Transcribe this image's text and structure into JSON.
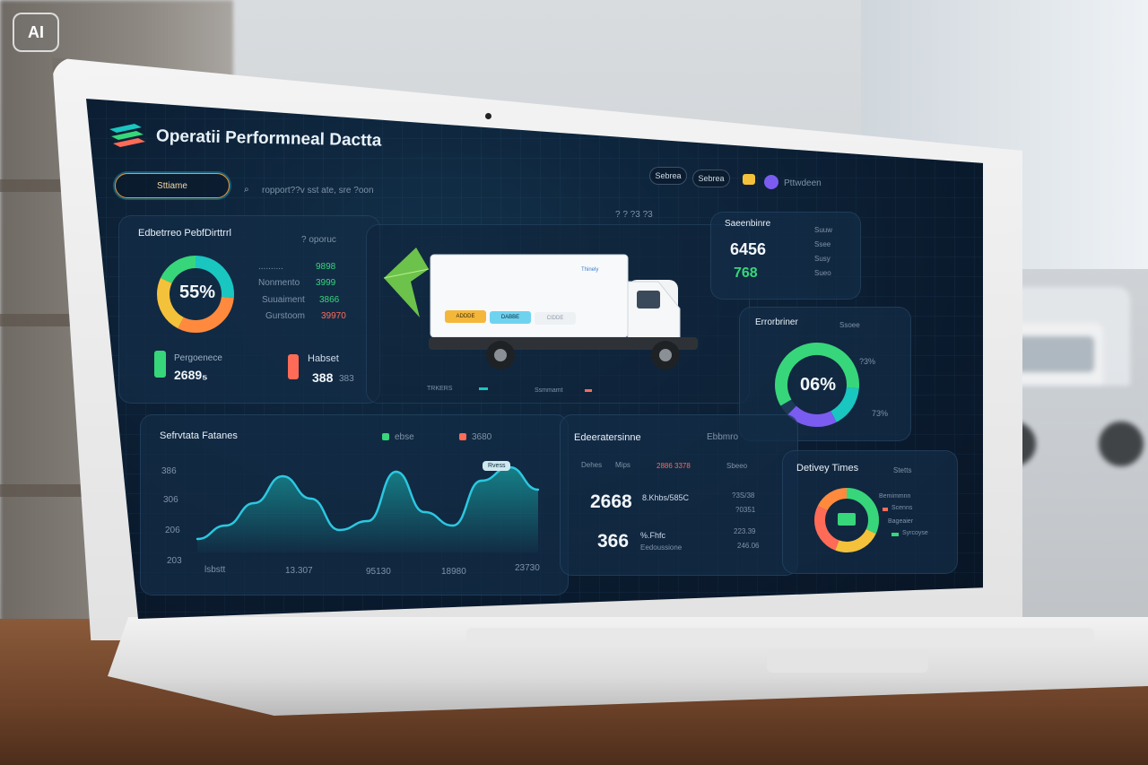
{
  "badge": "AI",
  "app": {
    "title": "Operatii Performneal Dactta"
  },
  "toolbar": {
    "filter_label": "Sttiame",
    "search_text": "ropport??v sst ate, sre ?oon",
    "buttons": [
      "Sebrea",
      "Sebrea"
    ],
    "user_label": "Pttwdeen",
    "mini_icons_text": "?  ?  ?3  ?3"
  },
  "perf_panel": {
    "title": "Edbetrreo PebfDirttrrl",
    "menu": "? oporuc",
    "donut_value": "55%",
    "rows": [
      {
        "label": "..........",
        "value": "9898"
      },
      {
        "label": "Nonmento",
        "value": "3999"
      },
      {
        "label": "Suuaiment",
        "value": "3866"
      },
      {
        "label": "Gurstoom",
        "value": "39970"
      }
    ],
    "stat_left_label": "Pergoenece",
    "stat_left_value": "2689₅",
    "stat_right_label": "Habset",
    "stat_right_value": "388",
    "stat_right_sub": "383"
  },
  "truck_panel": {
    "box_labels": [
      "ADDDE",
      "DABBE",
      "CIDDE"
    ],
    "box_logo": "Thinely",
    "legend": [
      "TRKERS",
      "",
      "Ssmmamt",
      "",
      ""
    ]
  },
  "summary_panel": {
    "title": "Saeenbinre",
    "values": [
      "6456",
      "768"
    ],
    "side": [
      "Suuw",
      "Ssee",
      "Susy",
      "Sueo"
    ]
  },
  "eff_panel": {
    "title": "Errorbriner",
    "menu": "Ssoee",
    "value": "06%",
    "side_top": "?3%",
    "side_bottom": "73%"
  },
  "trend_panel": {
    "title": "Sefrvtata Fatanes",
    "legend": [
      "ebse",
      "3680"
    ],
    "tooltip": "Rvess",
    "y_ticks": [
      "386",
      "306",
      "206",
      "203"
    ],
    "x_ticks": [
      "lsbstt",
      "13.307",
      "95130",
      "18980",
      "23730"
    ]
  },
  "metrics_panel": {
    "title": "Edeeratersinne",
    "menu": "Ebbmro",
    "cols": [
      "Dehes",
      "Mips",
      "2886 3378",
      "Sbeeo"
    ],
    "row1_big": "2668",
    "row1_sub": "8.Khbs/585C",
    "row1_right": [
      "?3S/38",
      "?0351"
    ],
    "row2_big": "366",
    "row2_sub": "%.Fhfc",
    "row2_sub2": "Eedoussione",
    "row2_right": [
      "223.39",
      "246.06"
    ]
  },
  "delivery_panel": {
    "title": "Detivey Times",
    "menu": "Stetts",
    "legend": [
      "Bemimmnn",
      "Scenns",
      "Bageaier",
      "Syrcoyse"
    ]
  },
  "colors": {
    "bg": "#0b1c30",
    "panel": "#142c46",
    "green": "#37d67a",
    "teal": "#19c6c0",
    "orange": "#ff8a3d",
    "yellow": "#f4c13a",
    "purple": "#7a5cf0",
    "red": "#ff6b57",
    "accent_line": "#2cc7e0"
  },
  "chart_data": {
    "type": "area",
    "title": "Sefrvtata Fatanes",
    "xlabel": "",
    "ylabel": "",
    "y_ticks": [
      "386",
      "306",
      "206",
      "203"
    ],
    "x_ticks": [
      "lsbstt",
      "13.307",
      "95130",
      "18980",
      "23730"
    ],
    "series": [
      {
        "values": [
          0.15,
          0.3,
          0.55,
          0.85,
          0.6,
          0.25,
          0.35,
          0.9,
          0.45,
          0.3,
          0.8,
          0.95,
          0.7
        ]
      }
    ],
    "ylim": [
      0,
      1
    ],
    "grid": false
  }
}
